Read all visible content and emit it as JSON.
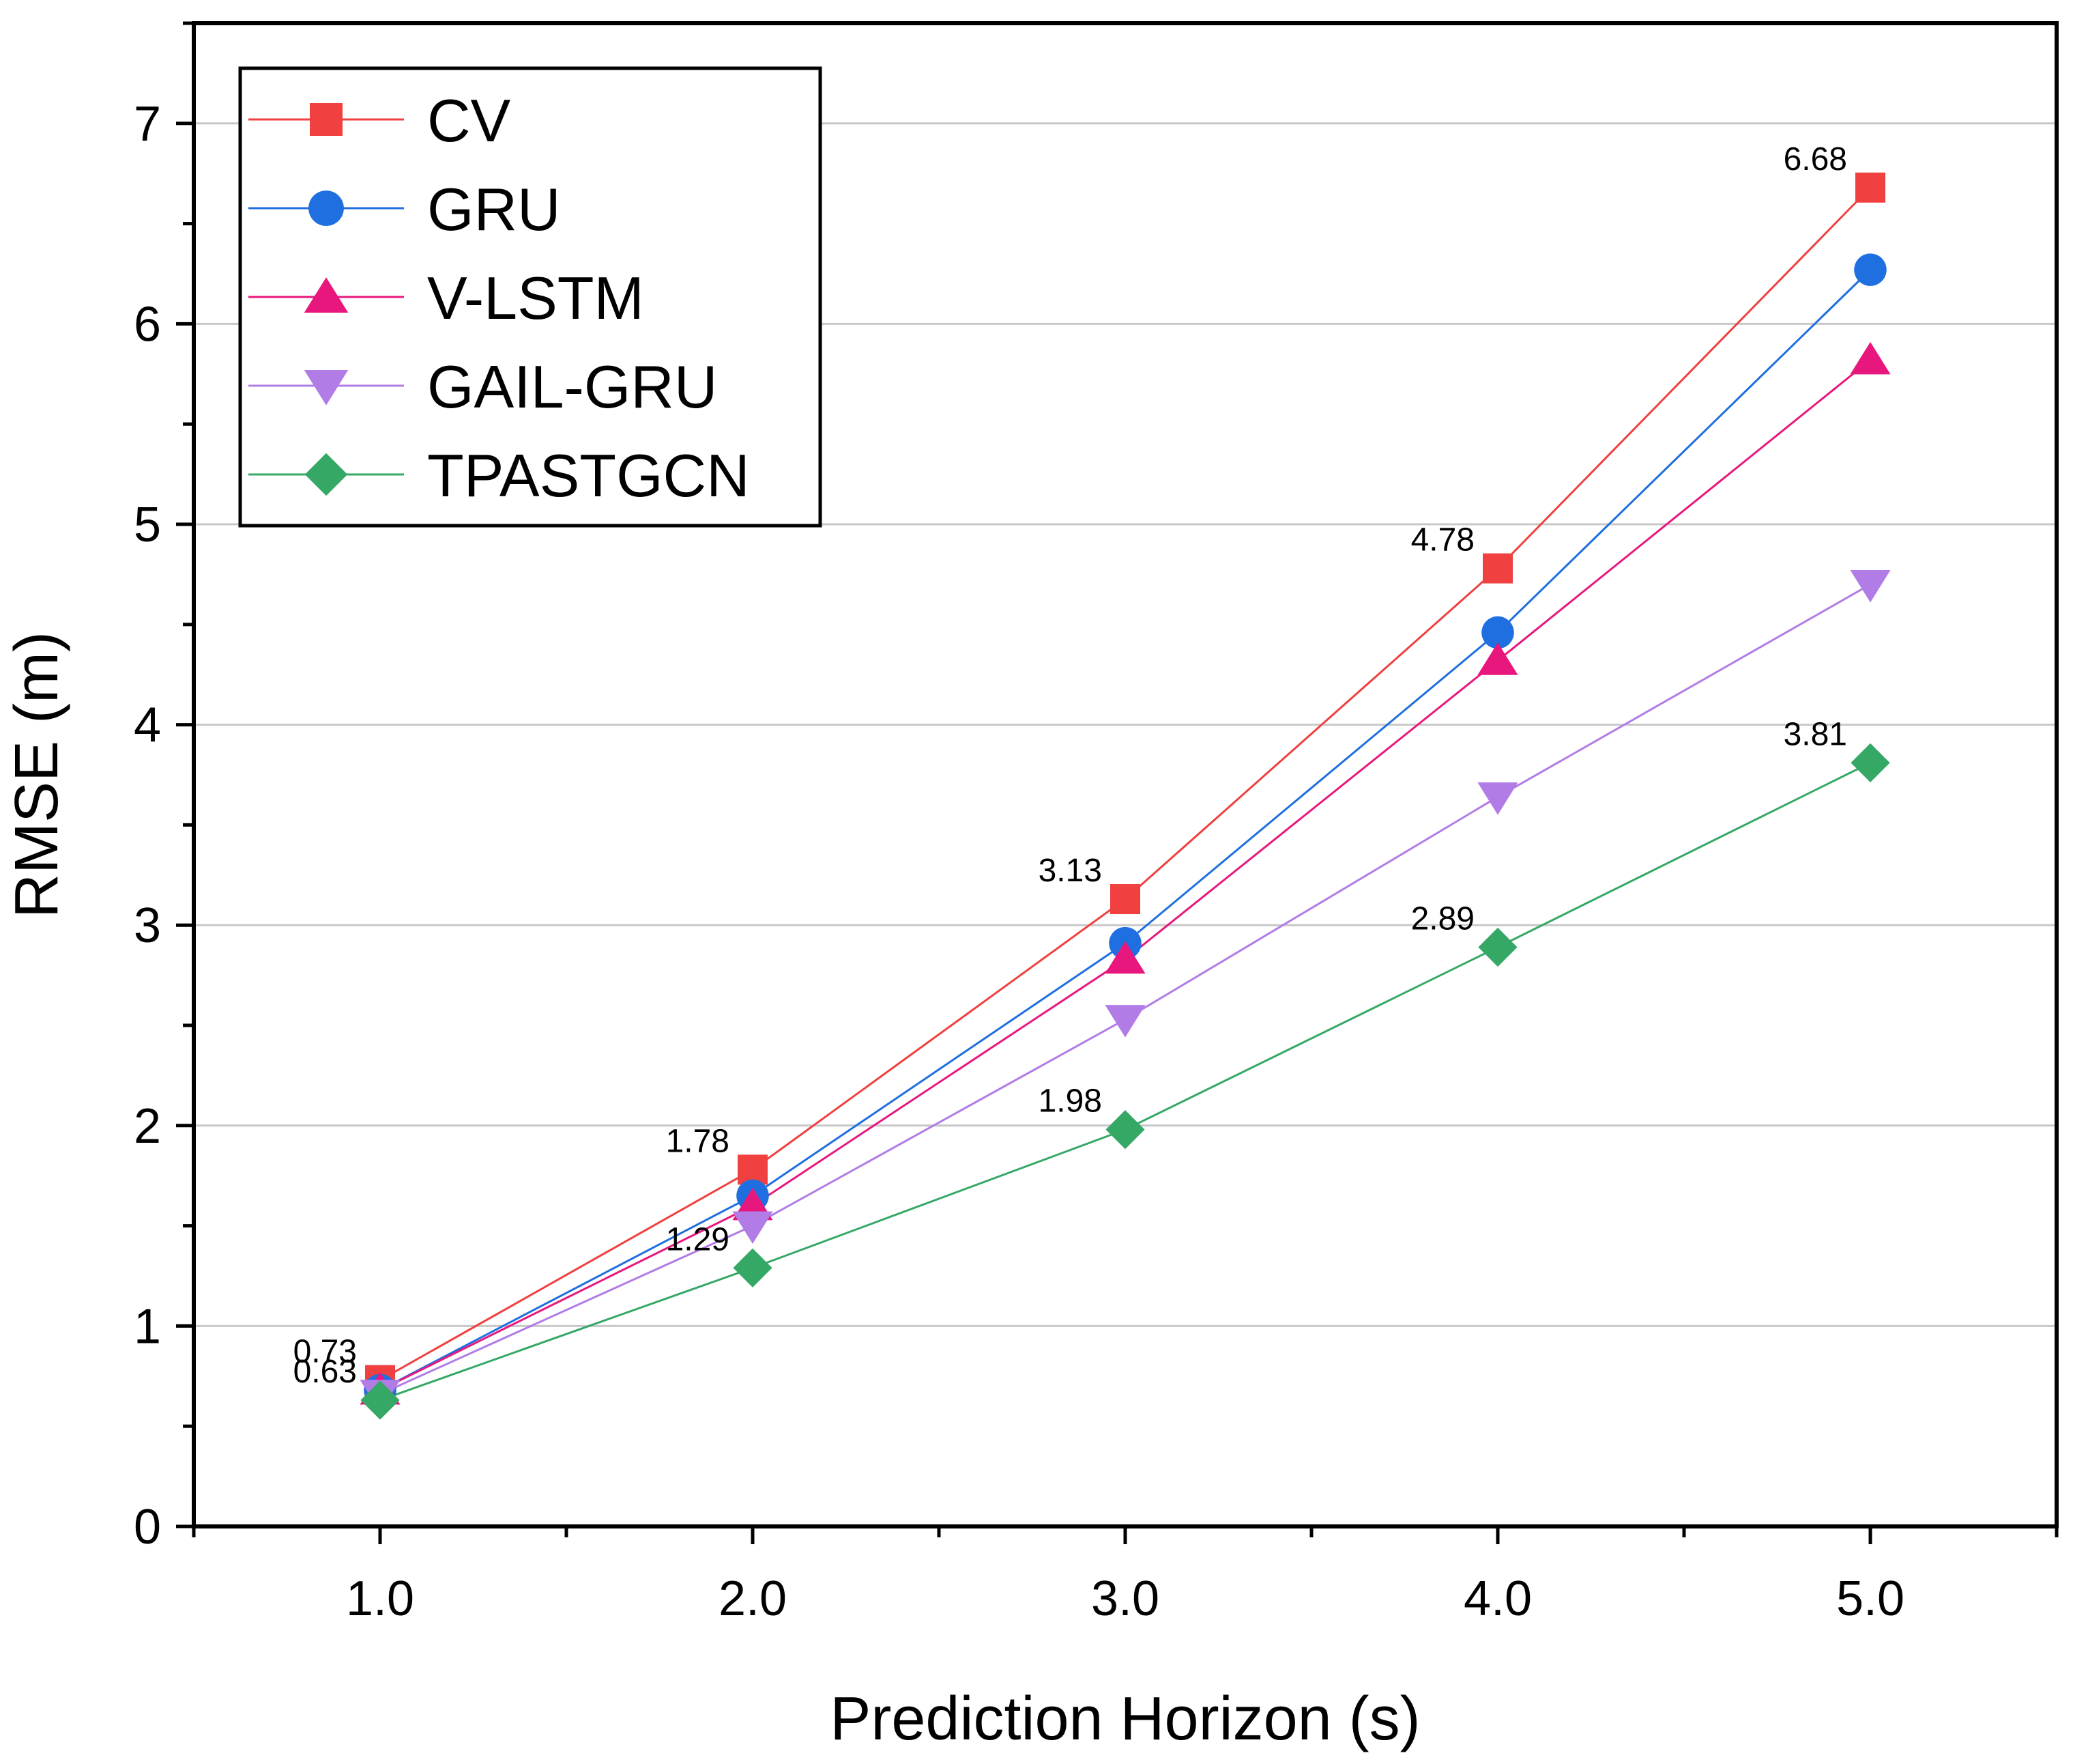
{
  "chart_data": {
    "type": "line",
    "title": "",
    "xlabel": "Prediction Horizon (s)",
    "ylabel": "RMSE (m)",
    "xlim": [
      0.5,
      5.5
    ],
    "ylim": [
      0,
      7.5
    ],
    "xticks": [
      1.0,
      2.0,
      3.0,
      4.0,
      5.0
    ],
    "xtick_labels": [
      "1.0",
      "2.0",
      "3.0",
      "4.0",
      "5.0"
    ],
    "yticks": [
      0,
      1,
      2,
      3,
      4,
      5,
      6,
      7
    ],
    "ytick_labels": [
      "0",
      "1",
      "2",
      "3",
      "4",
      "5",
      "6",
      "7"
    ],
    "grid": "horizontal",
    "legend_position": "top-left",
    "x": [
      1.0,
      2.0,
      3.0,
      4.0,
      5.0
    ],
    "series": [
      {
        "name": "CV",
        "color": "#f04040",
        "marker": "square",
        "values": [
          0.73,
          1.78,
          3.13,
          4.78,
          6.68
        ]
      },
      {
        "name": "GRU",
        "color": "#1f6fe0",
        "marker": "circle",
        "values": [
          0.68,
          1.65,
          2.91,
          4.46,
          6.27
        ]
      },
      {
        "name": "V-LSTM",
        "color": "#e8177e",
        "marker": "triangle-up",
        "values": [
          0.68,
          1.6,
          2.83,
          4.32,
          5.82
        ]
      },
      {
        "name": "GAIL-GRU",
        "color": "#b27ce6",
        "marker": "triangle-down",
        "values": [
          0.66,
          1.5,
          2.53,
          3.64,
          4.7
        ]
      },
      {
        "name": "TPASTGCN",
        "color": "#36a866",
        "marker": "diamond",
        "values": [
          0.63,
          1.29,
          1.98,
          2.89,
          3.81
        ]
      }
    ],
    "annotations": [
      {
        "series": "CV",
        "x": 1.0,
        "text": "0.73"
      },
      {
        "series": "CV",
        "x": 2.0,
        "text": "1.78"
      },
      {
        "series": "CV",
        "x": 3.0,
        "text": "3.13"
      },
      {
        "series": "CV",
        "x": 4.0,
        "text": "4.78"
      },
      {
        "series": "CV",
        "x": 5.0,
        "text": "6.68"
      },
      {
        "series": "TPASTGCN",
        "x": 1.0,
        "text": "0.63"
      },
      {
        "series": "TPASTGCN",
        "x": 2.0,
        "text": "1.29"
      },
      {
        "series": "TPASTGCN",
        "x": 3.0,
        "text": "1.98"
      },
      {
        "series": "TPASTGCN",
        "x": 4.0,
        "text": "2.89"
      },
      {
        "series": "TPASTGCN",
        "x": 5.0,
        "text": "3.81"
      }
    ]
  }
}
